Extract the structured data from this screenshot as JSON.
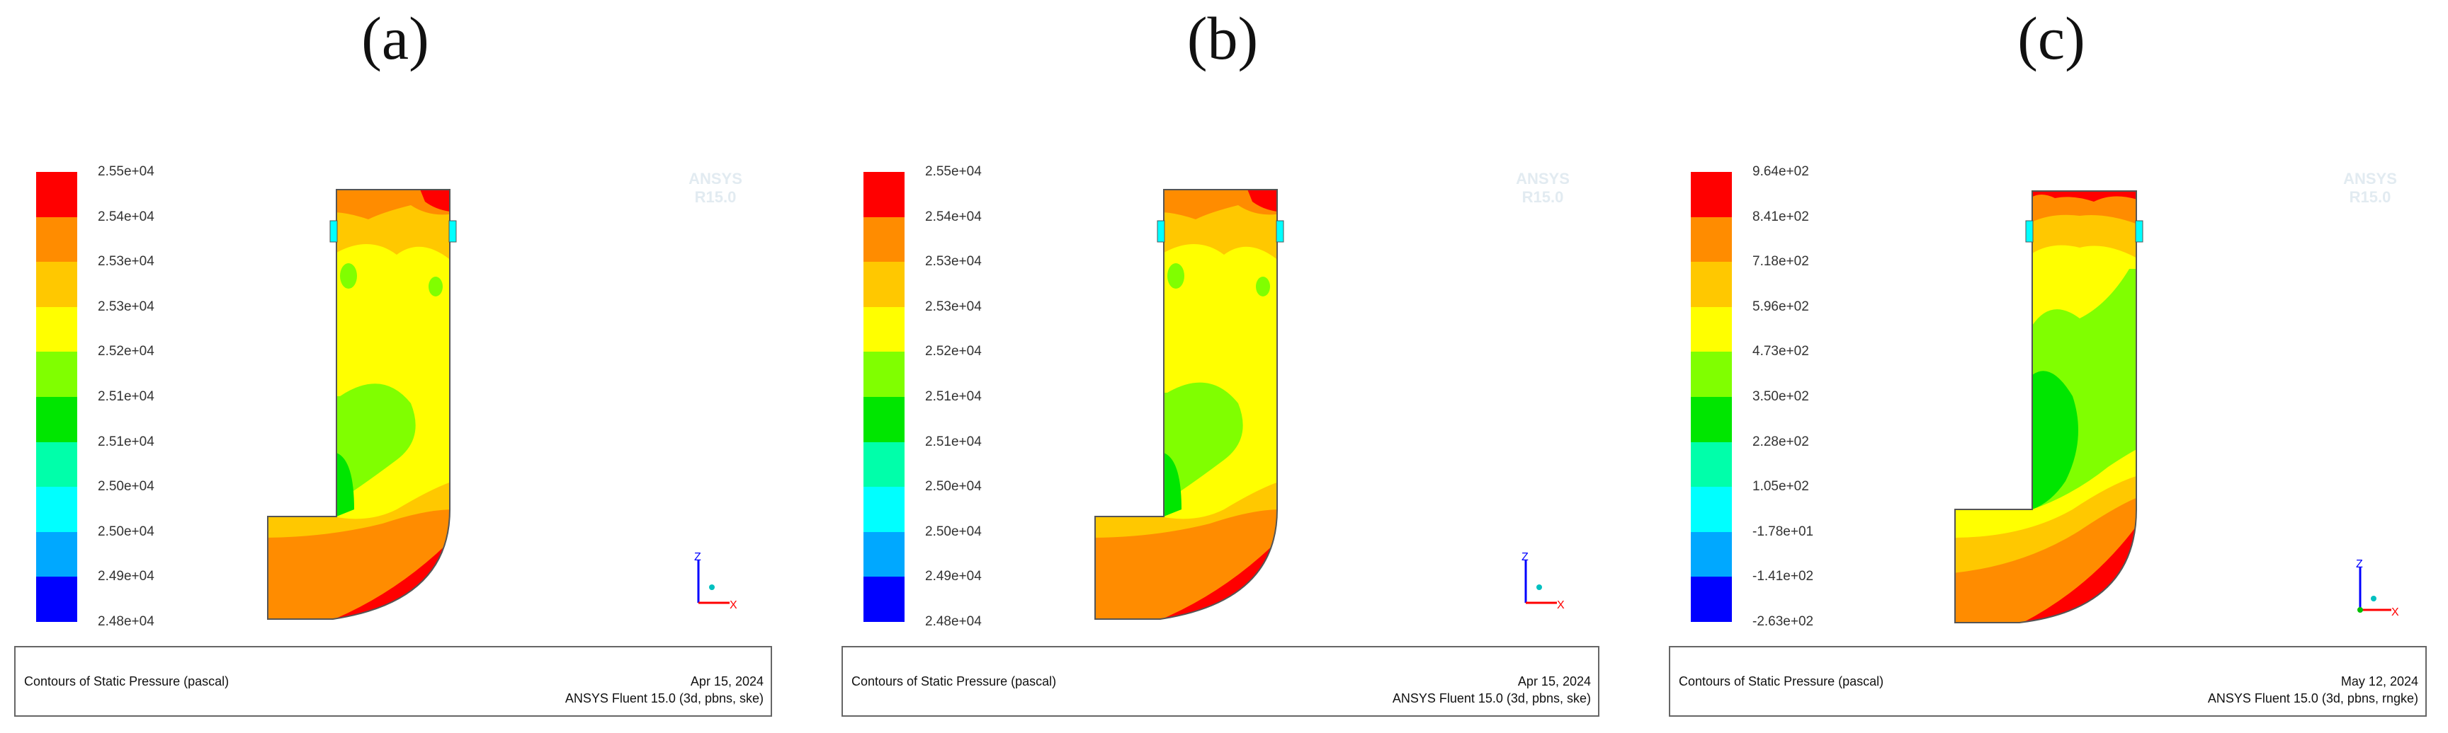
{
  "colors": {
    "scale": [
      "#ff0000",
      "#ff8c00",
      "#ffc800",
      "#ffff00",
      "#80ff00",
      "#00e600",
      "#00ffaa",
      "#00ffff",
      "#00a8ff",
      "#0000ff"
    ],
    "outline": "#555555",
    "axis_z": "#0000ff",
    "axis_x": "#ff0000",
    "axis_y": "#00c000"
  },
  "panels": [
    {
      "label": "(a)",
      "legend": [
        "2.55e+04",
        "2.54e+04",
        "2.53e+04",
        "2.53e+04",
        "2.52e+04",
        "2.51e+04",
        "2.51e+04",
        "2.50e+04",
        "2.50e+04",
        "2.49e+04",
        "2.48e+04"
      ],
      "watermark": [
        "ANSYS",
        "R15.0"
      ],
      "caption": "Contours of Static Pressure (pascal)",
      "date": "Apr 15, 2024",
      "software": "ANSYS Fluent 15.0 (3d, pbns, ske)"
    },
    {
      "label": "(b)",
      "legend": [
        "2.55e+04",
        "2.54e+04",
        "2.53e+04",
        "2.53e+04",
        "2.52e+04",
        "2.51e+04",
        "2.51e+04",
        "2.50e+04",
        "2.50e+04",
        "2.49e+04",
        "2.48e+04"
      ],
      "watermark": [
        "ANSYS",
        "R15.0"
      ],
      "caption": "Contours of Static Pressure (pascal)",
      "date": "Apr 15, 2024",
      "software": "ANSYS Fluent 15.0 (3d, pbns, ske)"
    },
    {
      "label": "(c)",
      "legend": [
        "9.64e+02",
        "8.41e+02",
        "7.18e+02",
        "5.96e+02",
        "4.73e+02",
        "3.50e+02",
        "2.28e+02",
        "1.05e+02",
        "-1.78e+01",
        "-1.41e+02",
        "-2.63e+02"
      ],
      "watermark": [
        "ANSYS",
        "R15.0"
      ],
      "caption": "Contours of Static Pressure (pascal)",
      "date": "May 12, 2024",
      "software": "ANSYS Fluent 15.0 (3d, pbns, rngke)"
    }
  ],
  "axes_labels": {
    "z": "Z",
    "x": "X"
  }
}
